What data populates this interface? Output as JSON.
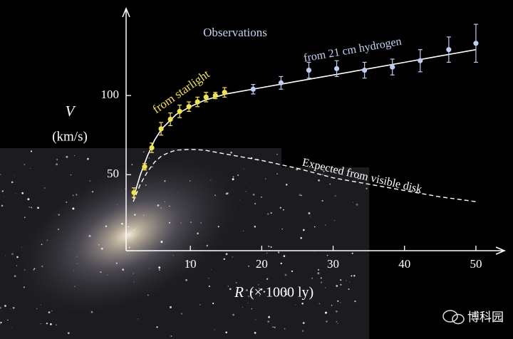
{
  "chart_data": {
    "type": "scatter",
    "ylabel_symbol": "V",
    "ylabel_unit": "(km/s)",
    "xlabel_symbol": "R",
    "xlabel_unit": "(× 1000 ly)",
    "title": "Observations",
    "xlim": [
      1,
      53
    ],
    "ylim": [
      2,
      150
    ],
    "xticks": [
      10,
      20,
      30,
      40,
      50
    ],
    "yticks": [
      50,
      100
    ],
    "series": [
      {
        "name": "from starlight",
        "color": "#f2e34a",
        "x": [
          2.1,
          3.6,
          4.6,
          5.9,
          7.2,
          8.5,
          9.8,
          11,
          12.2,
          13.5,
          14.8
        ],
        "values": [
          38.7,
          55,
          67,
          79,
          85,
          90,
          93,
          96,
          99,
          100,
          102
        ],
        "errors": [
          3,
          2,
          3,
          4,
          4,
          4,
          3,
          3,
          3,
          2,
          3
        ]
      },
      {
        "name": "from 21 cm hydrogen",
        "color": "#bcccf2",
        "x": [
          18.8,
          22.7,
          26.6,
          30.5,
          34.4,
          38.3,
          42.2,
          46.2,
          50
        ],
        "values": [
          104,
          108,
          116,
          117,
          116,
          118,
          122,
          129,
          133
        ],
        "errors": [
          3,
          4,
          5,
          5,
          5,
          5,
          7,
          8,
          12
        ]
      },
      {
        "name": "Expected from visible disk",
        "color": "#ffffff",
        "x": [
          2,
          3,
          4,
          5,
          6,
          7,
          8,
          10,
          12,
          15,
          20,
          25,
          30,
          35,
          40,
          45,
          50
        ],
        "values": [
          33,
          44,
          52,
          58,
          62,
          64,
          65.5,
          66,
          65.5,
          63,
          59,
          54,
          48,
          44,
          40,
          36,
          33
        ]
      }
    ],
    "fit_curve": {
      "color": "#ffffff",
      "x": [
        2,
        3,
        4,
        5,
        6,
        8,
        10,
        12,
        15,
        20,
        25,
        30,
        35,
        40,
        45,
        50
      ],
      "values": [
        35,
        50,
        62,
        72,
        79,
        88,
        93,
        97,
        101,
        105,
        109,
        113,
        117,
        121,
        125,
        129
      ]
    },
    "watermark": "博科园"
  }
}
